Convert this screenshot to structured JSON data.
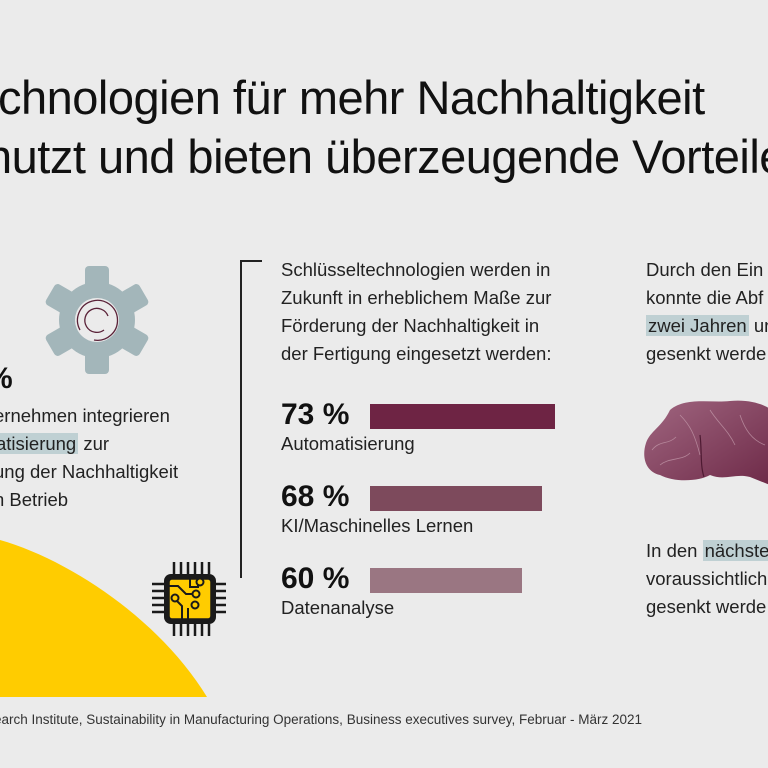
{
  "title": {
    "line1": "chnologien für mehr Nachhaltigkeit",
    "line2": "nutzt und bieten überzeugende Vorteile"
  },
  "left": {
    "percent": "%",
    "lines": [
      {
        "text": "ernehmen integrieren",
        "highlight": ""
      },
      {
        "text": " zur",
        "highlight": "atisierung"
      },
      {
        "text": "ung der Nachhaltigkeit",
        "highlight": ""
      },
      {
        "text": "n Betrieb",
        "highlight": ""
      }
    ]
  },
  "middle": {
    "intro": [
      "Schlüsseltechnologien werden in",
      "Zukunft in erheblichem Maße zur",
      "Förderung der Nachhaltigkeit in",
      "der Fertigung eingesetzt werden:"
    ]
  },
  "chart_data": {
    "type": "bar",
    "orientation": "horizontal",
    "categories": [
      "Automatisierung",
      "KI/Maschinelles Lernen",
      "Datenanalyse"
    ],
    "values": [
      73,
      68,
      60
    ],
    "value_labels": [
      "73 %",
      "68 %",
      "60 %"
    ],
    "unit": "%",
    "colors": [
      "#6e2444",
      "#7d4a5c",
      "#9a7682"
    ],
    "title": "Schlüsseltechnologien werden in Zukunft in erheblichem Maße zur Förderung der Nachhaltigkeit in der Fertigung eingesetzt werden:",
    "xlabel": "",
    "ylabel": "",
    "grid": false,
    "legend": "none"
  },
  "right": {
    "block1": [
      {
        "pre": "Durch den Ein",
        "highlight": "",
        "post": ""
      },
      {
        "pre": "konnte die Abf",
        "highlight": "",
        "post": ""
      },
      {
        "pre": "",
        "highlight": "zwei Jahren",
        "post": " un"
      },
      {
        "pre": "gesenkt werde",
        "highlight": "",
        "post": ""
      }
    ],
    "block2": [
      {
        "pre": "In den ",
        "highlight": "nächste",
        "post": ""
      },
      {
        "pre": "voraussichtlich",
        "highlight": "",
        "post": ""
      },
      {
        "pre": "gesenkt werde",
        "highlight": "",
        "post": ""
      }
    ]
  },
  "icons": {
    "gear": "gear-icon",
    "chip": "cpu-chip-icon",
    "bags": "garbage-bags-image"
  },
  "colors": {
    "background": "#ebebeb",
    "highlight": "#bfd0d3",
    "gear": "#a3b6ba",
    "accent_yellow": "#ffcc00",
    "accent_wine": "#6e2444"
  },
  "source": "earch Institute, Sustainability in Manufacturing Operations, Business executives survey, Februar - März 2021"
}
